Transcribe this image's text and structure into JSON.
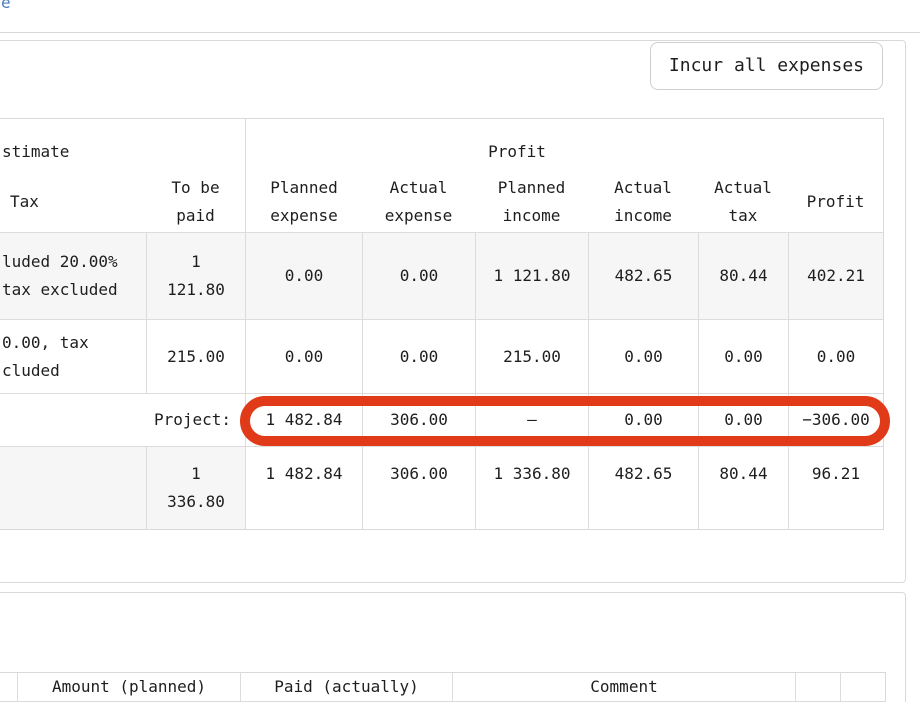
{
  "topbar": {
    "link_fragment": "e"
  },
  "toolbar": {
    "incur_all_label": "Incur all expenses"
  },
  "colors": {
    "highlight": "#e13a18",
    "link": "#4d7fbe",
    "stripe": "#f6f6f6",
    "border": "#d9d9d9"
  },
  "profit_table": {
    "group_headers": {
      "estimate_partial": "stimate",
      "profit": "Profit"
    },
    "headers": {
      "tax": "Tax",
      "to_be_paid": "To be\npaid",
      "planned_expense": "Planned\nexpense",
      "actual_expense": "Actual\nexpense",
      "planned_income": "Planned\nincome",
      "actual_income": "Actual\nincome",
      "actual_tax": "Actual\ntax",
      "profit": "Profit"
    },
    "rows": [
      {
        "tax": "luded 20.00%\ntax excluded",
        "to_be_paid": "1\n121.80",
        "planned_expense": "0.00",
        "actual_expense": "0.00",
        "planned_income": "1 121.80",
        "actual_income": "482.65",
        "actual_tax": "80.44",
        "profit": "402.21"
      },
      {
        "tax": "0.00, tax\ncluded",
        "to_be_paid": "215.00",
        "planned_expense": "0.00",
        "actual_expense": "0.00",
        "planned_income": "215.00",
        "actual_income": "0.00",
        "actual_tax": "0.00",
        "profit": "0.00"
      }
    ],
    "project_row": {
      "label": "Project:",
      "planned_expense": "1 482.84",
      "actual_expense": "306.00",
      "planned_income": "–",
      "actual_income": "0.00",
      "actual_tax": "0.00",
      "profit": "−306.00"
    },
    "total_row": {
      "to_be_paid": "1\n336.80",
      "planned_expense": "1 482.84",
      "actual_expense": "306.00",
      "planned_income": "1 336.80",
      "actual_income": "482.65",
      "actual_tax": "80.44",
      "profit": "96.21"
    }
  },
  "payments_table": {
    "headers": {
      "amount": "Amount (planned)",
      "paid": "Paid (actually)",
      "comment": "Comment"
    }
  }
}
